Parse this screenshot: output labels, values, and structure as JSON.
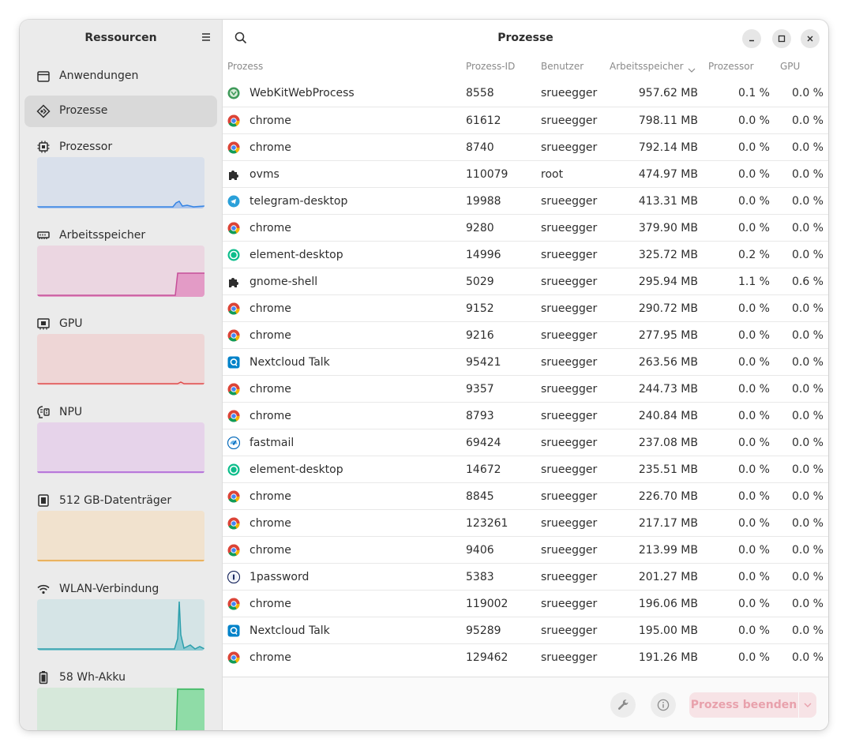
{
  "sidebar": {
    "title": "Ressourcen",
    "nav": [
      {
        "label": "Anwendungen",
        "icon": "window-icon"
      },
      {
        "label": "Prozesse",
        "icon": "processes-icon"
      }
    ],
    "resources": [
      {
        "label": "Prozessor",
        "icon": "cpu-icon",
        "color": "#3584e4",
        "fill": "#d9e0eb"
      },
      {
        "label": "Arbeitsspeicher",
        "icon": "memory-icon",
        "color": "#c64f99",
        "fill": "#ebd6e1"
      },
      {
        "label": "GPU",
        "icon": "gpu-icon",
        "color": "#e04b4b",
        "fill": "#eed6d6"
      },
      {
        "label": "NPU",
        "icon": "npu-icon",
        "color": "#a75ad4",
        "fill": "#e6d3ea"
      },
      {
        "label": "512 GB-Datenträger",
        "icon": "drive-icon",
        "color": "#e8a33c",
        "fill": "#f1e2ce"
      },
      {
        "label": "WLAN-Verbindung",
        "icon": "wifi-icon",
        "color": "#2c9fac",
        "fill": "#d5e4e6"
      },
      {
        "label": "58 Wh-Akku",
        "icon": "battery-icon",
        "color": "#33b35a",
        "fill": "#d6e8da"
      }
    ]
  },
  "main": {
    "title": "Prozesse",
    "columns": {
      "name": "Prozess",
      "pid": "Prozess-ID",
      "user": "Benutzer",
      "memory": "Arbeitsspeicher",
      "cpu": "Prozessor",
      "gpu": "GPU"
    },
    "processes": [
      {
        "name": "WebKitWebProcess",
        "pid": "8558",
        "user": "srueegger",
        "mem": "957.62 MB",
        "cpu": "0.1 %",
        "gpu": "0.0 %",
        "icon": "webkit"
      },
      {
        "name": "chrome",
        "pid": "61612",
        "user": "srueegger",
        "mem": "798.11 MB",
        "cpu": "0.0 %",
        "gpu": "0.0 %",
        "icon": "chrome"
      },
      {
        "name": "chrome",
        "pid": "8740",
        "user": "srueegger",
        "mem": "792.14 MB",
        "cpu": "0.0 %",
        "gpu": "0.0 %",
        "icon": "chrome"
      },
      {
        "name": "ovms",
        "pid": "110079",
        "user": "root",
        "mem": "474.97 MB",
        "cpu": "0.0 %",
        "gpu": "0.0 %",
        "icon": "puzzle"
      },
      {
        "name": "telegram-desktop",
        "pid": "19988",
        "user": "srueegger",
        "mem": "413.31 MB",
        "cpu": "0.0 %",
        "gpu": "0.0 %",
        "icon": "telegram"
      },
      {
        "name": "chrome",
        "pid": "9280",
        "user": "srueegger",
        "mem": "379.90 MB",
        "cpu": "0.0 %",
        "gpu": "0.0 %",
        "icon": "chrome"
      },
      {
        "name": "element-desktop",
        "pid": "14996",
        "user": "srueegger",
        "mem": "325.72 MB",
        "cpu": "0.2 %",
        "gpu": "0.0 %",
        "icon": "element"
      },
      {
        "name": "gnome-shell",
        "pid": "5029",
        "user": "srueegger",
        "mem": "295.94 MB",
        "cpu": "1.1 %",
        "gpu": "0.6 %",
        "icon": "puzzle"
      },
      {
        "name": "chrome",
        "pid": "9152",
        "user": "srueegger",
        "mem": "290.72 MB",
        "cpu": "0.0 %",
        "gpu": "0.0 %",
        "icon": "chrome"
      },
      {
        "name": "chrome",
        "pid": "9216",
        "user": "srueegger",
        "mem": "277.95 MB",
        "cpu": "0.0 %",
        "gpu": "0.0 %",
        "icon": "chrome"
      },
      {
        "name": "Nextcloud Talk",
        "pid": "95421",
        "user": "srueegger",
        "mem": "263.56 MB",
        "cpu": "0.0 %",
        "gpu": "0.0 %",
        "icon": "nextcloud"
      },
      {
        "name": "chrome",
        "pid": "9357",
        "user": "srueegger",
        "mem": "244.73 MB",
        "cpu": "0.0 %",
        "gpu": "0.0 %",
        "icon": "chrome"
      },
      {
        "name": "chrome",
        "pid": "8793",
        "user": "srueegger",
        "mem": "240.84 MB",
        "cpu": "0.0 %",
        "gpu": "0.0 %",
        "icon": "chrome"
      },
      {
        "name": "fastmail",
        "pid": "69424",
        "user": "srueegger",
        "mem": "237.08 MB",
        "cpu": "0.0 %",
        "gpu": "0.0 %",
        "icon": "fastmail"
      },
      {
        "name": "element-desktop",
        "pid": "14672",
        "user": "srueegger",
        "mem": "235.51 MB",
        "cpu": "0.0 %",
        "gpu": "0.0 %",
        "icon": "element"
      },
      {
        "name": "chrome",
        "pid": "8845",
        "user": "srueegger",
        "mem": "226.70 MB",
        "cpu": "0.0 %",
        "gpu": "0.0 %",
        "icon": "chrome"
      },
      {
        "name": "chrome",
        "pid": "123261",
        "user": "srueegger",
        "mem": "217.17 MB",
        "cpu": "0.0 %",
        "gpu": "0.0 %",
        "icon": "chrome"
      },
      {
        "name": "chrome",
        "pid": "9406",
        "user": "srueegger",
        "mem": "213.99 MB",
        "cpu": "0.0 %",
        "gpu": "0.0 %",
        "icon": "chrome"
      },
      {
        "name": "1password",
        "pid": "5383",
        "user": "srueegger",
        "mem": "201.27 MB",
        "cpu": "0.0 %",
        "gpu": "0.0 %",
        "icon": "onepassword"
      },
      {
        "name": "chrome",
        "pid": "119002",
        "user": "srueegger",
        "mem": "196.06 MB",
        "cpu": "0.0 %",
        "gpu": "0.0 %",
        "icon": "chrome"
      },
      {
        "name": "Nextcloud Talk",
        "pid": "95289",
        "user": "srueegger",
        "mem": "195.00 MB",
        "cpu": "0.0 %",
        "gpu": "0.0 %",
        "icon": "nextcloud"
      },
      {
        "name": "chrome",
        "pid": "129462",
        "user": "srueegger",
        "mem": "191.26 MB",
        "cpu": "0.0 %",
        "gpu": "0.0 %",
        "icon": "chrome"
      }
    ],
    "end_process_label": "Prozess beenden"
  }
}
